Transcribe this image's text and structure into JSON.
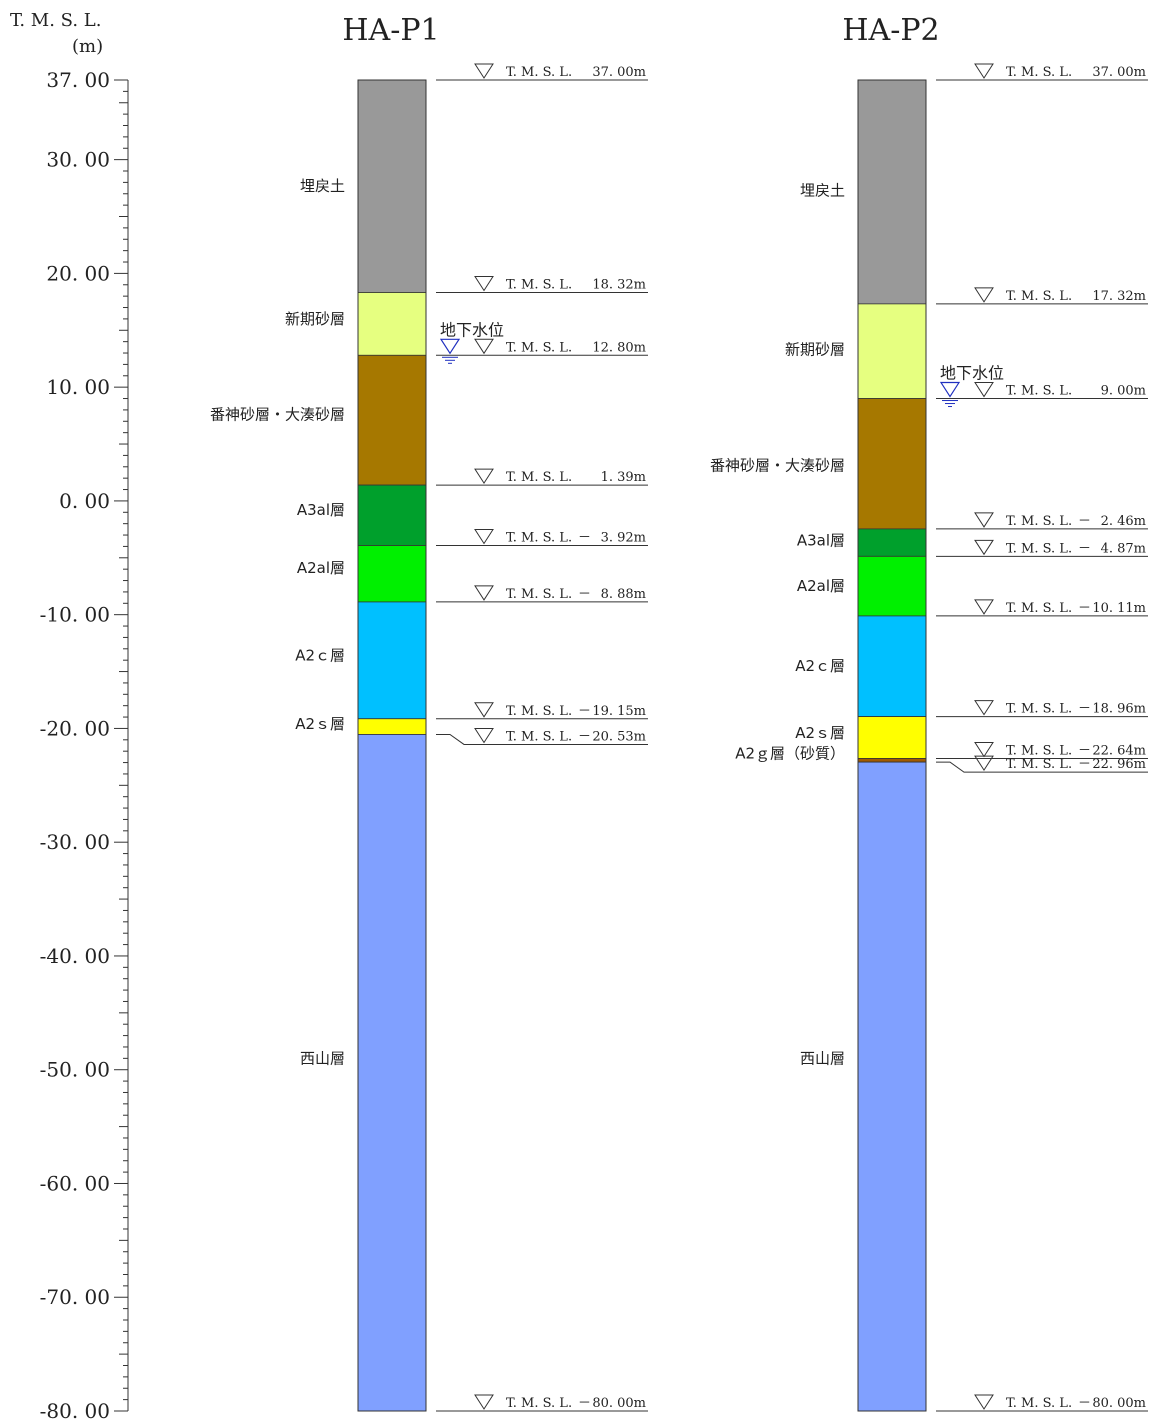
{
  "axis": {
    "title_line1": "T. M. S. L.",
    "title_line2": "(m)",
    "min": -80,
    "max": 37,
    "ticks": [
      {
        "value": 37,
        "label": "37. 00"
      },
      {
        "value": 30,
        "label": "30. 00"
      },
      {
        "value": 20,
        "label": "20. 00"
      },
      {
        "value": 10,
        "label": "10. 00"
      },
      {
        "value": 0,
        "label": "0. 00"
      },
      {
        "value": -10,
        "label": "-10. 00"
      },
      {
        "value": -20,
        "label": "-20. 00"
      },
      {
        "value": -30,
        "label": "-30. 00"
      },
      {
        "value": -40,
        "label": "-40. 00"
      },
      {
        "value": -50,
        "label": "-50. 00"
      },
      {
        "value": -60,
        "label": "-60. 00"
      },
      {
        "value": -70,
        "label": "-70. 00"
      },
      {
        "value": -80,
        "label": "-80. 00"
      }
    ]
  },
  "boreholes": [
    {
      "name": "HA-P1",
      "layers": [
        {
          "label": "埋戻土",
          "top": 37.0,
          "bottom": 18.32,
          "color": "#999999",
          "label_at": 27.7
        },
        {
          "label": "新期砂層",
          "top": 18.32,
          "bottom": 12.8,
          "color": "#E6FF80",
          "label_at": 16.0
        },
        {
          "label": "番神砂層・大湊砂層",
          "top": 12.8,
          "bottom": 1.39,
          "color": "#A67800",
          "label_at": 7.6
        },
        {
          "label": "A3al層",
          "top": 1.39,
          "bottom": -3.92,
          "color": "#00A02C",
          "label_at": -0.8
        },
        {
          "label": "A2al層",
          "top": -3.92,
          "bottom": -8.88,
          "color": "#00F000",
          "label_at": -5.9
        },
        {
          "label": "A2ｃ層",
          "top": -8.88,
          "bottom": -19.15,
          "color": "#00C0FF",
          "label_at": -13.6
        },
        {
          "label": "A2ｓ層",
          "top": -19.15,
          "bottom": -20.53,
          "color": "#FFFF00",
          "label_at": -19.6
        },
        {
          "label": "西山層",
          "top": -20.53,
          "bottom": -80.0,
          "color": "#80A0FF",
          "label_at": -49.0
        }
      ],
      "elevations": [
        {
          "prefix": "T. M. S. L.",
          "sign": "",
          "value": "37. 00m",
          "at": 37.0
        },
        {
          "prefix": "T. M. S. L.",
          "sign": "",
          "value": "18. 32m",
          "at": 18.32
        },
        {
          "prefix": "T. M. S. L.",
          "sign": "",
          "value": "12. 80m",
          "at": 12.8
        },
        {
          "prefix": "T. M. S. L.",
          "sign": "",
          "value": "1. 39m",
          "at": 1.39
        },
        {
          "prefix": "T. M. S. L.",
          "sign": "－",
          "value": "3. 92m",
          "at": -3.92
        },
        {
          "prefix": "T. M. S. L.",
          "sign": "－",
          "value": "8. 88m",
          "at": -8.88
        },
        {
          "prefix": "T. M. S. L.",
          "sign": "－",
          "value": "19. 15m",
          "at": -19.15
        },
        {
          "prefix": "T. M. S. L.",
          "sign": "－",
          "value": "20. 53m",
          "at": -20.53,
          "offset": true
        },
        {
          "prefix": "T. M. S. L.",
          "sign": "－",
          "value": "80. 00m",
          "at": -80.0
        }
      ],
      "water_level": {
        "label": "地下水位",
        "at": 12.8
      }
    },
    {
      "name": "HA-P2",
      "layers": [
        {
          "label": "埋戻土",
          "top": 37.0,
          "bottom": 17.32,
          "color": "#999999",
          "label_at": 27.3
        },
        {
          "label": "新期砂層",
          "top": 17.32,
          "bottom": 9.0,
          "color": "#E6FF80",
          "label_at": 13.3
        },
        {
          "label": "番神砂層・大湊砂層",
          "top": 9.0,
          "bottom": -2.46,
          "color": "#A67800",
          "label_at": 3.1
        },
        {
          "label": "A3al層",
          "top": -2.46,
          "bottom": -4.87,
          "color": "#00A02C",
          "label_at": -3.5
        },
        {
          "label": "A2al層",
          "top": -4.87,
          "bottom": -10.11,
          "color": "#00F000",
          "label_at": -7.5
        },
        {
          "label": "A2ｃ層",
          "top": -10.11,
          "bottom": -18.96,
          "color": "#00C0FF",
          "label_at": -14.5
        },
        {
          "label": "A2ｓ層",
          "top": -18.96,
          "bottom": -22.64,
          "color": "#FFFF00",
          "label_at": -20.4
        },
        {
          "label": "A2ｇ層（砂質）",
          "top": -22.64,
          "bottom": -22.96,
          "color": "#A05A00",
          "label_at": -22.2
        },
        {
          "label": "西山層",
          "top": -22.96,
          "bottom": -80.0,
          "color": "#80A0FF",
          "label_at": -49.0
        }
      ],
      "elevations": [
        {
          "prefix": "T. M. S. L.",
          "sign": "",
          "value": "37. 00m",
          "at": 37.0
        },
        {
          "prefix": "T. M. S. L.",
          "sign": "",
          "value": "17. 32m",
          "at": 17.32
        },
        {
          "prefix": "T. M. S. L.",
          "sign": "",
          "value": "9. 00m",
          "at": 9.0
        },
        {
          "prefix": "T. M. S. L.",
          "sign": "－",
          "value": "2. 46m",
          "at": -2.46
        },
        {
          "prefix": "T. M. S. L.",
          "sign": "－",
          "value": "4. 87m",
          "at": -4.87
        },
        {
          "prefix": "T. M. S. L.",
          "sign": "－",
          "value": "10. 11m",
          "at": -10.11
        },
        {
          "prefix": "T. M. S. L.",
          "sign": "－",
          "value": "18. 96m",
          "at": -18.96
        },
        {
          "prefix": "T. M. S. L.",
          "sign": "－",
          "value": "22. 64m",
          "at": -22.64
        },
        {
          "prefix": "T. M. S. L.",
          "sign": "－",
          "value": "22. 96m",
          "at": -22.96,
          "offset": true
        },
        {
          "prefix": "T. M. S. L.",
          "sign": "－",
          "value": "80. 00m",
          "at": -80.0
        }
      ],
      "water_level": {
        "label": "地下水位",
        "at": 9.0
      }
    }
  ],
  "colors": {
    "line": "#333333",
    "water_symbol": "#2030C0"
  }
}
